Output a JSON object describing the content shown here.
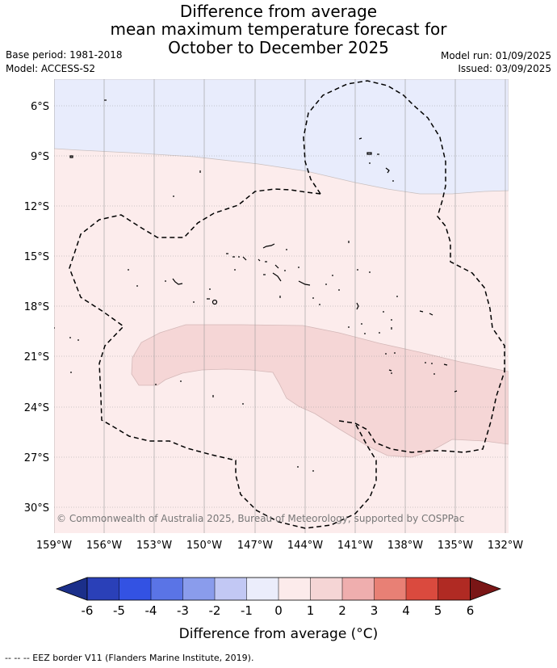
{
  "title": {
    "line1": "Difference from average",
    "line2": "mean maximum temperature forecast for",
    "line3": "October to December 2025"
  },
  "meta": {
    "base_period": "Base period: 1981-2018",
    "model": "Model: ACCESS-S2",
    "model_run": "Model run: 01/09/2025",
    "issued": "Issued: 03/09/2025"
  },
  "map": {
    "lat_ticks": [
      "6°S",
      "9°S",
      "12°S",
      "15°S",
      "18°S",
      "21°S",
      "24°S",
      "27°S",
      "30°S"
    ],
    "lon_ticks": [
      "159°W",
      "156°W",
      "153°W",
      "150°W",
      "147°W",
      "144°W",
      "141°W",
      "138°W",
      "135°W",
      "132°W"
    ],
    "copyright": "© Commonwealth of Australia 2025, Bureau of Meteorology, supported by COSPPac",
    "colors": {
      "minus1_to_0": "#e8ecfc",
      "0_to_1": "#fcecec",
      "1_to_2": "#f5d6d6"
    }
  },
  "colorbar": {
    "labels": [
      "-6",
      "-5",
      "-4",
      "-3",
      "-2",
      "-1",
      "0",
      "1",
      "2",
      "3",
      "4",
      "5",
      "6"
    ],
    "colors": [
      "#1b2f8a",
      "#2a40b8",
      "#3352e3",
      "#5a74e6",
      "#8a9cec",
      "#c2c8f4",
      "#ebedfb",
      "#fcebeb",
      "#f5d5d5",
      "#efaeae",
      "#e88075",
      "#da4a3e",
      "#b02a23",
      "#7a1616"
    ],
    "title": "Difference from average (°C)"
  },
  "footer": "--  --  -- EEZ border V11 (Flanders Marine Institute, 2019)."
}
